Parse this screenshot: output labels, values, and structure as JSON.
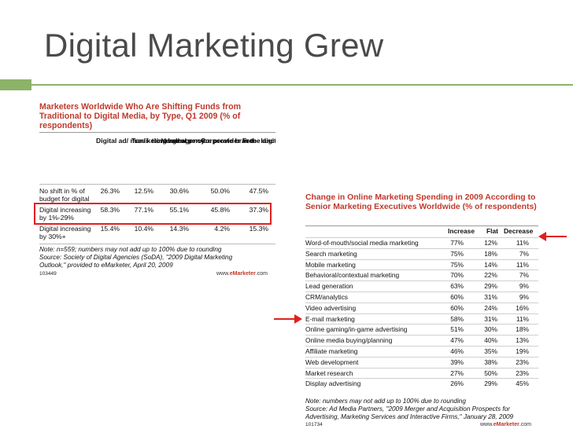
{
  "slide": {
    "title": "Digital Marketing Grew",
    "accent": "#8cb368",
    "highlight_color": "#e02020"
  },
  "table_left": {
    "title": "Marketers Worldwide Who Are Shifting Funds from Traditional to Digital Media, by Type, Q1 2009 (% of respondents)",
    "columns": [
      "Digital ad/ mar- keting agency",
      "Tradi- tional ad agency",
      "Vendor/ service provider in the digital industry",
      "Corporate brand",
      "Free- lance/ indepen- dent"
    ],
    "rows": [
      {
        "label": "No shift in % of budget for digital",
        "values": [
          "26.3%",
          "12.5%",
          "30.6%",
          "50.0%",
          "47.5%"
        ]
      },
      {
        "label": "Digital increasing by 1%-29%",
        "values": [
          "58.3%",
          "77.1%",
          "55.1%",
          "45.8%",
          "37.3%"
        ]
      },
      {
        "label": "Digital increasing by 30%+",
        "values": [
          "15.4%",
          "10.4%",
          "14.3%",
          "4.2%",
          "15.3%"
        ]
      }
    ],
    "note1": "Note: n=559; numbers may not add up to 100% due to rounding",
    "note2": "Source: Society of Digital Agencies (SoDA), \"2009 Digital Marketing",
    "note3": "Outlook,\" provided to eMarketer, April 20, 2009",
    "id": "103449",
    "brand_prefix": "www.",
    "brand_name": "eMarketer",
    "brand_suffix": ".com"
  },
  "table_right": {
    "title": "Change in Online Marketing Spending in 2009 According to Senior Marketing Executives Worldwide (% of respondents)",
    "columns": [
      "Increase",
      "Flat",
      "Decrease"
    ],
    "rows": [
      {
        "label": "Word-of-mouth/social media marketing",
        "values": [
          "77%",
          "12%",
          "11%"
        ]
      },
      {
        "label": "Search marketing",
        "values": [
          "75%",
          "18%",
          "7%"
        ]
      },
      {
        "label": "Mobile marketing",
        "values": [
          "75%",
          "14%",
          "11%"
        ]
      },
      {
        "label": "Behavioral/contextual marketing",
        "values": [
          "70%",
          "22%",
          "7%"
        ]
      },
      {
        "label": "Lead generation",
        "values": [
          "63%",
          "29%",
          "9%"
        ]
      },
      {
        "label": "CRM/analytics",
        "values": [
          "60%",
          "31%",
          "9%"
        ]
      },
      {
        "label": "Video advertising",
        "values": [
          "60%",
          "24%",
          "16%"
        ]
      },
      {
        "label": "E-mail marketing",
        "values": [
          "58%",
          "31%",
          "11%"
        ]
      },
      {
        "label": "Online gaming/in-game advertising",
        "values": [
          "51%",
          "30%",
          "18%"
        ]
      },
      {
        "label": "Online media buying/planning",
        "values": [
          "47%",
          "40%",
          "13%"
        ]
      },
      {
        "label": "Affiliate marketing",
        "values": [
          "46%",
          "35%",
          "19%"
        ]
      },
      {
        "label": "Web development",
        "values": [
          "39%",
          "38%",
          "23%"
        ]
      },
      {
        "label": "Market research",
        "values": [
          "27%",
          "50%",
          "23%"
        ]
      },
      {
        "label": "Display advertising",
        "values": [
          "26%",
          "29%",
          "45%"
        ]
      }
    ],
    "note1": "Note: numbers may not add up to 100% due to rounding",
    "note2": "Source: Ad Media Partners, \"2009 Merger and Acquisition Prospects for",
    "note3": "Advertising, Marketing Services and Interactive Firms,\" January 28, 2009",
    "id": "101734",
    "brand_prefix": "www.",
    "brand_name": "eMarketer",
    "brand_suffix": ".com"
  }
}
